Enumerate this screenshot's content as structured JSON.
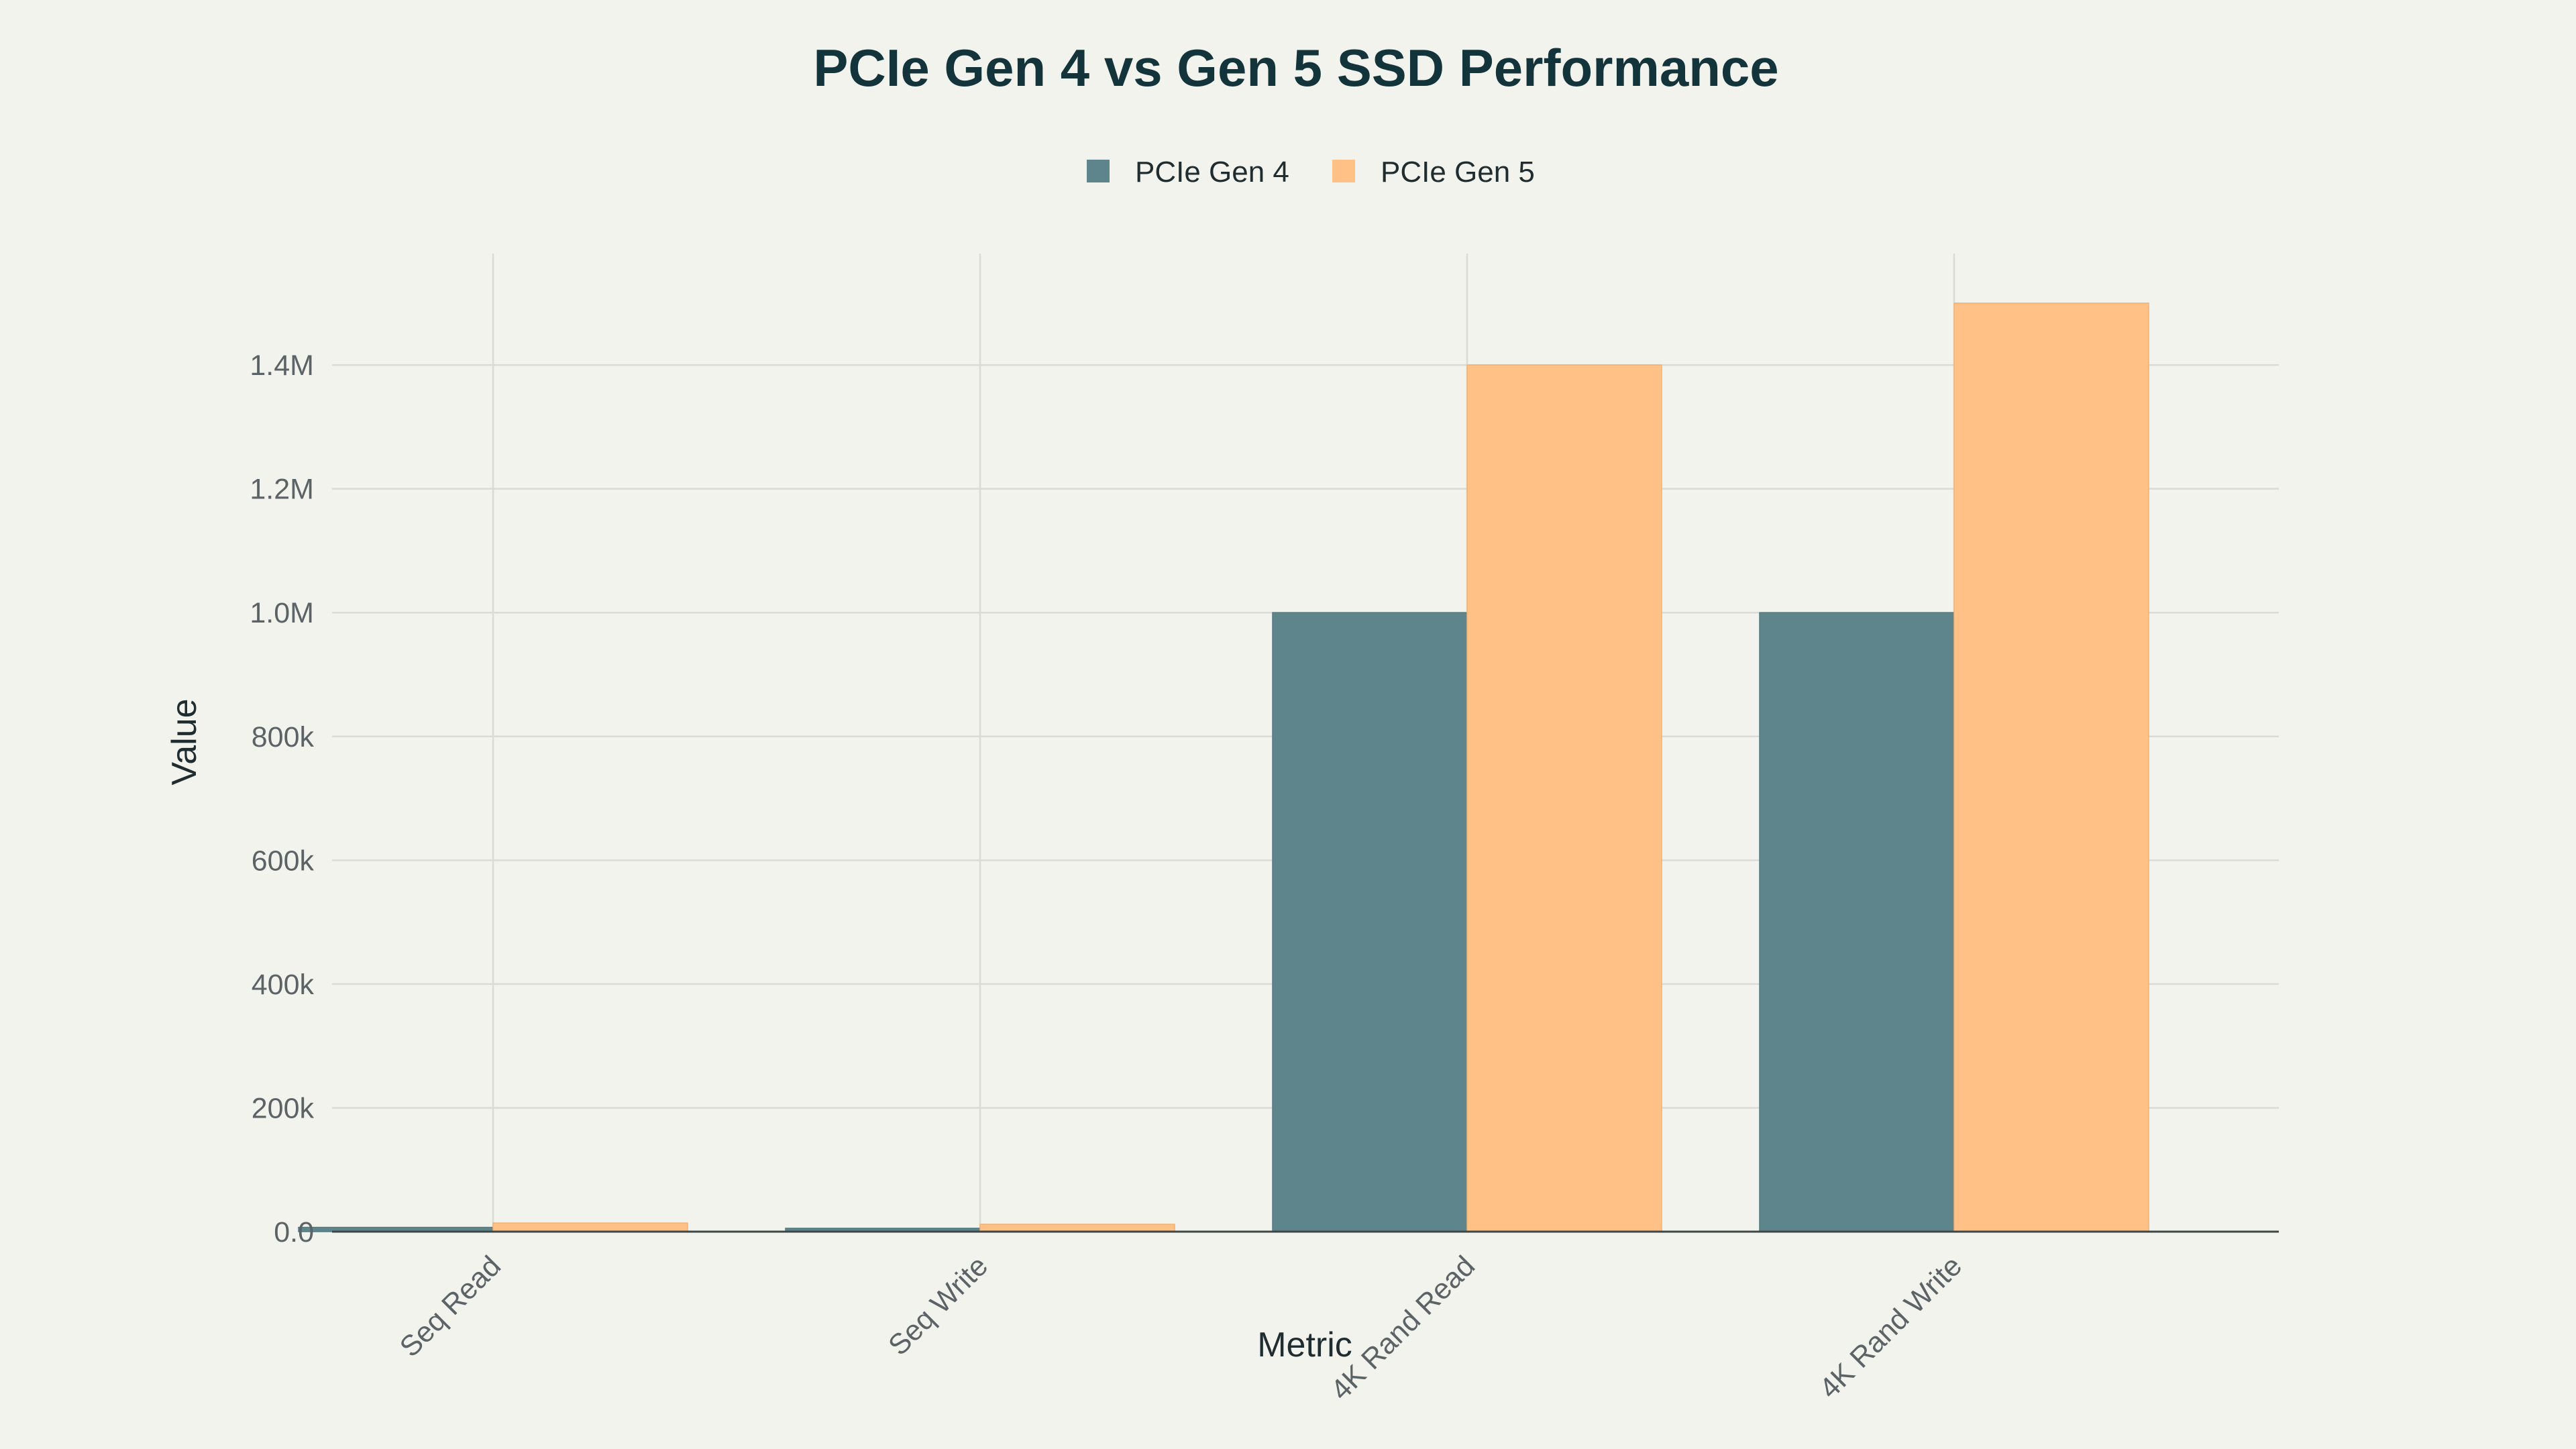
{
  "chart_data": {
    "type": "bar",
    "title": "PCIe Gen 4 vs Gen 5 SSD Performance",
    "xlabel": "Metric",
    "ylabel": "Value",
    "categories": [
      "Seq Read",
      "Seq Write",
      "4K Rand Read",
      "4K Rand Write"
    ],
    "series": [
      {
        "name": "PCIe Gen 4",
        "color": "#5e858b",
        "values": [
          7000,
          5500,
          1000000,
          1000000
        ]
      },
      {
        "name": "PCIe Gen 5",
        "color": "#ffc185",
        "values": [
          14000,
          12000,
          1400000,
          1500000
        ]
      }
    ],
    "ylim": [
      0,
      1580000
    ],
    "yticks": [
      0,
      200000,
      400000,
      600000,
      800000,
      1000000,
      1200000,
      1400000
    ],
    "ytick_labels": [
      "0.0",
      "200k",
      "400k",
      "600k",
      "800k",
      "1.0M",
      "1.2M",
      "1.4M"
    ],
    "legend_position": "top-center",
    "grid": true
  }
}
